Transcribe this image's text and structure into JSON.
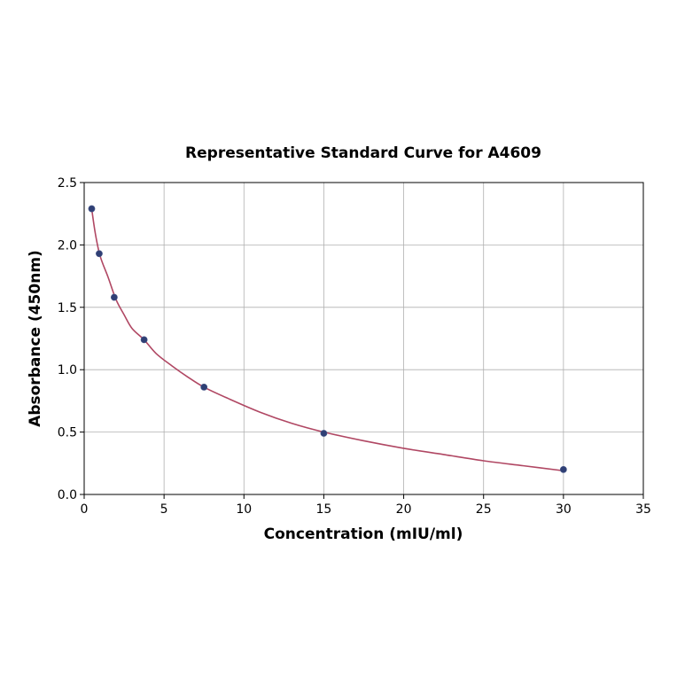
{
  "chart_data": {
    "type": "scatter",
    "title": "Representative Standard Curve for A4609",
    "xlabel": "Concentration (mIU/ml)",
    "ylabel": "Absorbance (450nm)",
    "xlim": [
      0,
      35
    ],
    "ylim": [
      0,
      2.5
    ],
    "xticks": [
      "0",
      "5",
      "10",
      "15",
      "20",
      "25",
      "30",
      "35"
    ],
    "yticks": [
      "0.0",
      "0.5",
      "1.0",
      "1.5",
      "2.0",
      "2.5"
    ],
    "grid": true,
    "points": [
      {
        "x": 0.47,
        "y": 2.29
      },
      {
        "x": 0.94,
        "y": 1.93
      },
      {
        "x": 1.88,
        "y": 1.58
      },
      {
        "x": 3.75,
        "y": 1.24
      },
      {
        "x": 7.5,
        "y": 0.86
      },
      {
        "x": 15,
        "y": 0.49
      },
      {
        "x": 30,
        "y": 0.2
      }
    ],
    "fit_curve": {
      "x": [
        0.47,
        0.7,
        1.0,
        1.5,
        2.0,
        2.5,
        3.0,
        3.75,
        4.5,
        5.5,
        6.5,
        7.5,
        9,
        11,
        13,
        15,
        17.5,
        20,
        22.5,
        25,
        27.5,
        30
      ],
      "y": [
        2.29,
        2.09,
        1.91,
        1.74,
        1.56,
        1.44,
        1.33,
        1.24,
        1.13,
        1.03,
        0.94,
        0.86,
        0.77,
        0.66,
        0.57,
        0.5,
        0.43,
        0.37,
        0.32,
        0.27,
        0.23,
        0.19
      ]
    },
    "colors": {
      "marker": "#2f3f75",
      "curve": "#b04763",
      "grid": "#b0b0b0",
      "axis": "#000000"
    }
  }
}
